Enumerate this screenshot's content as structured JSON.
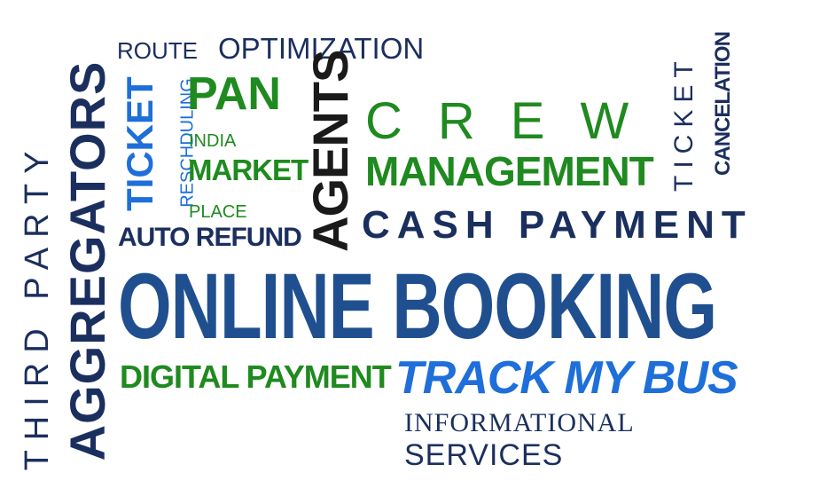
{
  "words": {
    "third_party": "THIRD PARTY",
    "aggregators": "AGGREGATORS",
    "route": "ROUTE",
    "optimization": "OPTIMIZATION",
    "ticket_vertical": "TICKET",
    "reschduling": "RESCHDULING",
    "pan": "PAN",
    "india": "INDIA",
    "market": "MARKET",
    "place": "PLACE",
    "auto_refund": "AUTO REFUND",
    "agents": "AGENTS",
    "crew": "CREW",
    "management": "MANAGEMENT",
    "cash_payment": "CASH PAYMENT",
    "ticket_right": "TICKET",
    "cancelation": "CANCELATION",
    "online_booking": "ONLINE BOOKING",
    "digital_payment": "DIGITAL PAYMENT",
    "track_my_bus": "TRACK MY BUS",
    "informational": "INFORMATIONAL",
    "services": "SERVICES"
  },
  "colors": {
    "navy": "#1b2f5e",
    "blue": "#1f4f8f",
    "bright_blue": "#1e6fd9",
    "green": "#1f8a1f",
    "dark": "#1a1a1a"
  }
}
